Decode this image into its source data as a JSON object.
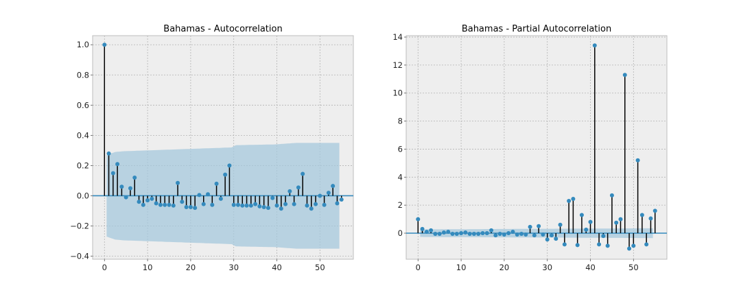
{
  "chart_data": [
    {
      "type": "stem",
      "title": "Bahamas - Autocorrelation",
      "xlabel": "",
      "ylabel": "",
      "xlim": [
        -2.75,
        57.75
      ],
      "ylim": [
        -0.42,
        1.06
      ],
      "xticks": [
        0,
        10,
        20,
        30,
        40,
        50
      ],
      "xtick_labels": [
        "0",
        "10",
        "20",
        "30",
        "40",
        "50"
      ],
      "yticks": [
        -0.4,
        -0.2,
        0.0,
        0.2,
        0.4,
        0.6,
        0.8,
        1.0
      ],
      "ytick_labels": [
        "−0.4",
        "−0.2",
        "0.0",
        "0.2",
        "0.4",
        "0.6",
        "0.8",
        "1.0"
      ],
      "grid": true,
      "series": [
        {
          "x": [
            0,
            1,
            2,
            3,
            4,
            5,
            6,
            7,
            8,
            9,
            10,
            11,
            12,
            13,
            14,
            15,
            16,
            17,
            18,
            19,
            20,
            21,
            22,
            23,
            24,
            25,
            26,
            27,
            28,
            29,
            30,
            31,
            32,
            33,
            34,
            35,
            36,
            37,
            38,
            39,
            40,
            41,
            42,
            43,
            44,
            45,
            46,
            47,
            48,
            49,
            50,
            51,
            52,
            53,
            54,
            55
          ],
          "values": [
            1.0,
            0.28,
            0.15,
            0.21,
            0.06,
            -0.01,
            0.05,
            0.12,
            -0.04,
            -0.06,
            -0.03,
            -0.02,
            -0.05,
            -0.06,
            -0.06,
            -0.06,
            -0.065,
            0.085,
            -0.04,
            -0.075,
            -0.075,
            -0.08,
            0.005,
            -0.055,
            0.01,
            -0.06,
            0.08,
            -0.02,
            0.14,
            0.2,
            -0.06,
            -0.06,
            -0.065,
            -0.065,
            -0.065,
            -0.055,
            -0.07,
            -0.075,
            -0.08,
            -0.015,
            -0.065,
            -0.085,
            -0.055,
            0.03,
            -0.055,
            0.055,
            0.145,
            -0.065,
            -0.085,
            -0.055,
            0.0,
            -0.06,
            0.02,
            0.065,
            -0.05,
            -0.025
          ]
        }
      ],
      "confidence_band": {
        "x": [
          1,
          3,
          5,
          10,
          20,
          30,
          31,
          40,
          45,
          55
        ],
        "upper": [
          0.27,
          0.29,
          0.295,
          0.3,
          0.31,
          0.32,
          0.335,
          0.34,
          0.35,
          0.35
        ],
        "lower": [
          -0.27,
          -0.29,
          -0.295,
          -0.3,
          -0.31,
          -0.32,
          -0.335,
          -0.34,
          -0.35,
          -0.35
        ]
      },
      "colors": {
        "marker": "#348abd",
        "stem": "#000000",
        "band": "#a6c8dc",
        "zero_line": "#348abd",
        "background": "#eeeeee"
      }
    },
    {
      "type": "stem",
      "title": "Bahamas - Partial Autocorrelation",
      "xlabel": "",
      "ylabel": "",
      "xlim": [
        -2.75,
        57.75
      ],
      "ylim": [
        -1.86,
        14.1
      ],
      "xticks": [
        0,
        10,
        20,
        30,
        40,
        50
      ],
      "xtick_labels": [
        "0",
        "10",
        "20",
        "30",
        "40",
        "50"
      ],
      "yticks": [
        0,
        2,
        4,
        6,
        8,
        10,
        12,
        14
      ],
      "ytick_labels": [
        "0",
        "2",
        "4",
        "6",
        "8",
        "10",
        "12",
        "14"
      ],
      "grid": true,
      "series": [
        {
          "x": [
            0,
            1,
            2,
            3,
            4,
            5,
            6,
            7,
            8,
            9,
            10,
            11,
            12,
            13,
            14,
            15,
            16,
            17,
            18,
            19,
            20,
            21,
            22,
            23,
            24,
            25,
            26,
            27,
            28,
            29,
            30,
            31,
            32,
            33,
            34,
            35,
            36,
            37,
            38,
            39,
            40,
            41,
            42,
            43,
            44,
            45,
            46,
            47,
            48,
            49,
            50,
            51,
            52,
            53,
            54,
            55
          ],
          "values": [
            1.0,
            0.3,
            0.1,
            0.2,
            -0.05,
            -0.05,
            0.05,
            0.1,
            -0.05,
            -0.05,
            0.0,
            0.05,
            -0.05,
            -0.05,
            -0.05,
            0.0,
            0.0,
            0.2,
            -0.15,
            -0.05,
            -0.1,
            0.0,
            0.1,
            -0.1,
            -0.05,
            -0.1,
            0.45,
            -0.15,
            0.5,
            -0.1,
            -0.45,
            -0.15,
            -0.4,
            0.6,
            -0.8,
            2.3,
            2.45,
            -0.85,
            1.3,
            0.25,
            0.8,
            13.4,
            -0.8,
            -0.2,
            -0.9,
            2.7,
            0.75,
            1.0,
            11.3,
            -1.1,
            -0.9,
            5.2,
            1.3,
            -0.8,
            1.05,
            1.6
          ]
        }
      ],
      "confidence_band": {
        "x": [
          1,
          55
        ],
        "upper": [
          0.27,
          0.35
        ],
        "lower": [
          -0.27,
          -0.35
        ]
      },
      "colors": {
        "marker": "#348abd",
        "stem": "#000000",
        "band": "#a6c8dc",
        "zero_line": "#348abd",
        "background": "#eeeeee"
      }
    }
  ]
}
